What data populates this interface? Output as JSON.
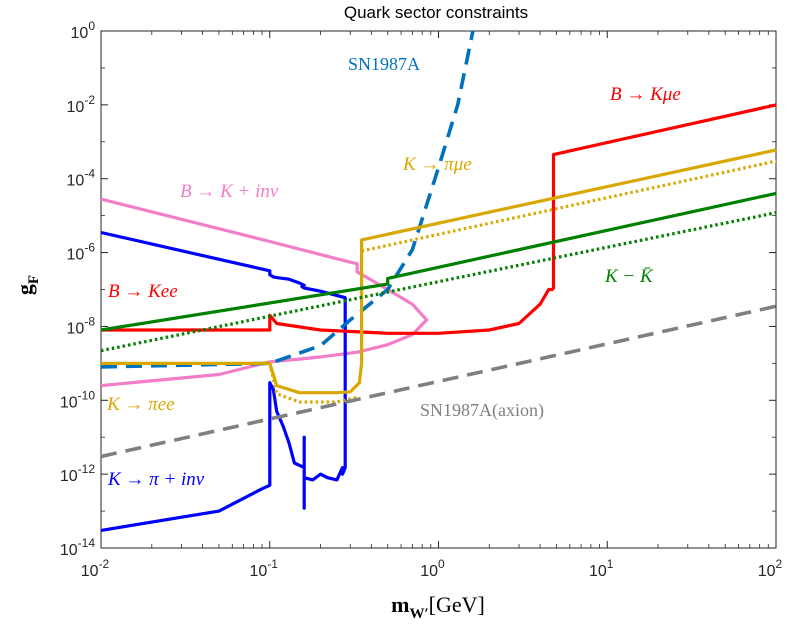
{
  "chart_data": {
    "type": "line",
    "title": "Quark sector constraints",
    "xlabel": "m_{W'} [GeV]",
    "xlabel_main": "m",
    "xlabel_sub": "W′",
    "xlabel_unit": "[GeV]",
    "ylabel": "g_F",
    "ylabel_main": "g",
    "ylabel_sub": "F",
    "xscale": "log",
    "yscale": "log",
    "xlim": [
      0.01,
      100
    ],
    "ylim": [
      1e-14,
      1
    ],
    "grid": false,
    "xticks": [
      {
        "base": "10",
        "exp": "-2"
      },
      {
        "base": "10",
        "exp": "-1"
      },
      {
        "base": "10",
        "exp": "0"
      },
      {
        "base": "10",
        "exp": "1"
      },
      {
        "base": "10",
        "exp": "2"
      }
    ],
    "yticks": [
      {
        "base": "10",
        "exp": "-14"
      },
      {
        "base": "10",
        "exp": "-12"
      },
      {
        "base": "10",
        "exp": "-10"
      },
      {
        "base": "10",
        "exp": "-8"
      },
      {
        "base": "10",
        "exp": "-6"
      },
      {
        "base": "10",
        "exp": "-4"
      },
      {
        "base": "10",
        "exp": "-2"
      },
      {
        "base": "10",
        "exp": "0"
      }
    ],
    "series": [
      {
        "name": "B → K + inv",
        "color": "#f37dc6",
        "style": "solid",
        "x": [
          0.01,
          0.1,
          0.3,
          0.33,
          0.33,
          0.5,
          0.7,
          0.85,
          0.7,
          0.5,
          0.33,
          0.25,
          0.2,
          0.15,
          0.1,
          0.05,
          0.01
        ],
        "y": [
          2.8e-05,
          2e-06,
          5.5e-07,
          5e-07,
          3e-07,
          1e-07,
          4e-08,
          1.5e-08,
          6e-09,
          3.2e-09,
          2e-09,
          1.7e-09,
          1.5e-09,
          1.3e-09,
          1.1e-09,
          5e-10,
          2.5e-10
        ]
      },
      {
        "name": "K → π + inv",
        "color": "#0000ff",
        "style": "solid",
        "x": [
          0.01,
          0.1,
          0.1,
          0.105,
          0.11,
          0.13,
          0.15,
          0.16,
          0.155,
          0.16,
          0.2,
          0.28,
          0.28,
          0.27,
          0.27,
          0.25,
          0.22,
          0.2,
          0.18,
          0.16,
          0.16,
          0.16,
          0.16,
          0.14,
          0.13,
          0.12,
          0.11,
          0.105,
          0.1,
          0.1,
          0.09,
          0.05,
          0.01
        ],
        "y": [
          3.5e-06,
          3.2e-07,
          2.5e-07,
          2.2e-07,
          2.1e-07,
          1.9e-07,
          1.5e-07,
          1.3e-07,
          1.2e-07,
          1.1e-07,
          9e-08,
          6e-08,
          1.5e-12,
          1e-12,
          1.5e-12,
          7e-13,
          8e-13,
          1e-12,
          7e-13,
          8e-13,
          1.2e-13,
          1e-11,
          1.5e-12,
          2e-12,
          7e-12,
          2e-11,
          5e-11,
          2e-10,
          3e-10,
          5e-13,
          4e-13,
          1e-13,
          3e-14
        ]
      },
      {
        "name": "SN1987A",
        "color": "#0072bd",
        "style": "dashed",
        "x": [
          0.01,
          0.1,
          0.2,
          0.3,
          0.5,
          0.7,
          1.0,
          1.3,
          1.6
        ],
        "y": [
          8e-10,
          1e-09,
          3e-09,
          1.5e-08,
          1e-07,
          1.2e-06,
          0.0002,
          0.01,
          1
        ]
      },
      {
        "name": "B → Kμe",
        "color": "#ff0000",
        "style": "solid",
        "x": [
          4.8,
          4.8,
          100
        ],
        "y": [
          1e-07,
          0.00045,
          0.01
        ]
      },
      {
        "name": "B → Kee",
        "color": "#ff0000",
        "style": "solid",
        "x": [
          0.01,
          0.1,
          0.1,
          0.11,
          0.2,
          0.5,
          1.0,
          2.0,
          3.0,
          4.0,
          4.5,
          4.8
        ],
        "y": [
          8e-09,
          8e-09,
          2e-08,
          1.2e-08,
          8e-09,
          6.5e-09,
          6.5e-09,
          8e-09,
          1.2e-08,
          4e-08,
          1e-07,
          1e-07
        ]
      },
      {
        "name": "K → πμe",
        "color": "#d9a800",
        "style": "solid",
        "x": [
          0.35,
          0.35,
          100
        ],
        "y": [
          1e-09,
          2.2e-06,
          0.0006
        ]
      },
      {
        "name": "K → πee",
        "color": "#d9a800",
        "style": "solid",
        "x": [
          0.01,
          0.1,
          0.11,
          0.15,
          0.25,
          0.3,
          0.34,
          0.35
        ],
        "y": [
          1e-09,
          1e-09,
          2.5e-10,
          1.6e-10,
          1.6e-10,
          1.7e-10,
          3e-10,
          1e-09
        ]
      },
      {
        "name": "K → πμe (dotted)",
        "color": "#d9a800",
        "style": "dotted",
        "x": [
          0.35,
          100
        ],
        "y": [
          1.1e-06,
          0.0003
        ]
      },
      {
        "name": "K → πee (dotted)",
        "color": "#d9a800",
        "style": "dotted",
        "x": [
          0.1,
          0.11,
          0.15,
          0.25,
          0.33
        ],
        "y": [
          1e-09,
          1.5e-10,
          9e-11,
          9e-11,
          1.2e-10
        ]
      },
      {
        "name": "K − K̄",
        "color": "#008000",
        "style": "solid",
        "x": [
          0.01,
          0.5,
          0.5,
          100
        ],
        "y": [
          8e-09,
          1.4e-07,
          2e-07,
          4e-05
        ]
      },
      {
        "name": "K − K̄ (dotted)",
        "color": "#008000",
        "style": "dotted",
        "x": [
          0.01,
          100
        ],
        "y": [
          2.2e-09,
          1.2e-05
        ]
      },
      {
        "name": "SN1987A(axion)",
        "color": "#808080",
        "style": "dashed",
        "x": [
          0.01,
          100
        ],
        "y": [
          3e-12,
          3.5e-08
        ]
      }
    ],
    "annotations": [
      {
        "text": "SN1987A",
        "color": "#0072bd",
        "upright": true
      },
      {
        "text": "B → Kμe",
        "color": "#ff0000"
      },
      {
        "text": "K → πμe",
        "color": "#d9a800"
      },
      {
        "text": "B → K + inv",
        "color": "#f37dc6"
      },
      {
        "text": "B → Kee",
        "color": "#ff0000"
      },
      {
        "text": "K − K̄",
        "color": "#008000"
      },
      {
        "text": "K → πee",
        "color": "#d9a800"
      },
      {
        "text": "SN1987A(axion)",
        "color": "#808080",
        "upright": true
      },
      {
        "text": "K → π + inv",
        "color": "#0000ff"
      }
    ]
  }
}
